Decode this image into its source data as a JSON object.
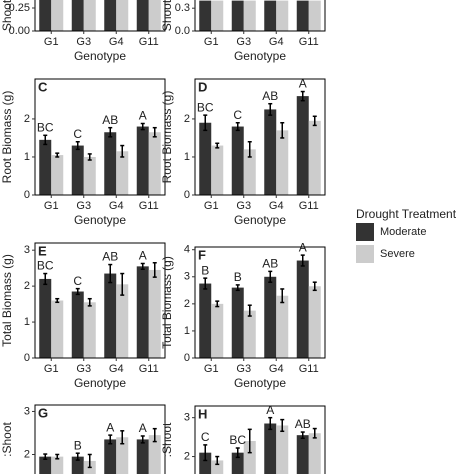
{
  "chart_data": [
    {
      "type": "bar",
      "ylabel": "Shoot",
      "xlabel": "Genotype",
      "categories": [
        "G1",
        "G3",
        "G4",
        "G11"
      ],
      "series": [
        {
          "name": "Moderate",
          "color": "#333333",
          "values": [
            0.4,
            0.4,
            0.4,
            0.4
          ]
        },
        {
          "name": "Severe",
          "color": "#cccccc",
          "values": [
            0.4,
            0.4,
            0.4,
            0.4
          ]
        }
      ],
      "ylim": [
        0,
        0.5
      ],
      "yticks": [
        {
          "value": 0,
          "label": "0.00"
        },
        0.25
      ],
      "legend_title": "Drought Treatment"
    },
    {
      "type": "bar",
      "ylabel": "Shoot",
      "xlabel": "Genotype",
      "categories": [
        "G1",
        "G3",
        "G4",
        "G11"
      ],
      "series": [
        {
          "name": "Moderate",
          "color": "#333333",
          "values": [
            0.4,
            0.4,
            0.4,
            0.4
          ]
        },
        {
          "name": "Severe",
          "color": "#cccccc",
          "values": [
            0.4,
            0.4,
            0.4,
            0.4
          ]
        }
      ],
      "ylim": [
        0,
        0.5
      ],
      "yticks": [
        {
          "value": 0,
          "label": "0.0"
        },
        0.3
      ]
    },
    {
      "type": "bar",
      "panel_label": "C",
      "ylabel": "Root Biomass (g)",
      "xlabel": "Genotype",
      "categories": [
        "G1",
        "G3",
        "G4",
        "G11"
      ],
      "series": [
        {
          "name": "Moderate",
          "color": "#333333",
          "values": [
            1.45,
            1.3,
            1.65,
            1.8
          ],
          "errors": [
            0.12,
            0.1,
            0.12,
            0.08
          ]
        },
        {
          "name": "Severe",
          "color": "#cccccc",
          "values": [
            1.05,
            1.0,
            1.15,
            1.65
          ],
          "errors": [
            0.05,
            0.08,
            0.15,
            0.12
          ]
        }
      ],
      "letters": [
        "BC",
        "C",
        "AB",
        "A"
      ],
      "ylim": [
        0,
        3.05
      ],
      "yticks": [
        0,
        1,
        2
      ]
    },
    {
      "type": "bar",
      "panel_label": "D",
      "ylabel": "Root Biomass (g)",
      "xlabel": "Genotype",
      "categories": [
        "G1",
        "G3",
        "G4",
        "G11"
      ],
      "series": [
        {
          "name": "Moderate",
          "color": "#333333",
          "values": [
            1.9,
            1.8,
            2.25,
            2.6
          ],
          "errors": [
            0.2,
            0.1,
            0.15,
            0.12
          ]
        },
        {
          "name": "Severe",
          "color": "#cccccc",
          "values": [
            1.3,
            1.2,
            1.7,
            1.95
          ],
          "errors": [
            0.06,
            0.2,
            0.2,
            0.12
          ]
        }
      ],
      "letters": [
        "BC",
        "C",
        "AB",
        "A"
      ],
      "ylim": [
        0,
        3.05
      ],
      "yticks": [
        0,
        1,
        2
      ]
    },
    {
      "type": "bar",
      "panel_label": "E",
      "ylabel": "Total Biomass (g)",
      "xlabel": "Genotype",
      "categories": [
        "G1",
        "G3",
        "G4",
        "G11"
      ],
      "series": [
        {
          "name": "Moderate",
          "color": "#333333",
          "values": [
            2.2,
            1.85,
            2.35,
            2.55
          ],
          "errors": [
            0.15,
            0.08,
            0.25,
            0.08
          ]
        },
        {
          "name": "Severe",
          "color": "#cccccc",
          "values": [
            1.6,
            1.55,
            2.05,
            2.45
          ],
          "errors": [
            0.05,
            0.1,
            0.3,
            0.2
          ]
        }
      ],
      "letters": [
        "BC",
        "C",
        "AB",
        "A"
      ],
      "ylim": [
        0,
        3.2
      ],
      "yticks": [
        0,
        1,
        2,
        3
      ]
    },
    {
      "type": "bar",
      "panel_label": "F",
      "ylabel": "Total Biomass (g)",
      "xlabel": "Genotype",
      "categories": [
        "G1",
        "G3",
        "G4",
        "G11"
      ],
      "series": [
        {
          "name": "Moderate",
          "color": "#333333",
          "values": [
            2.75,
            2.6,
            3.0,
            3.6
          ],
          "errors": [
            0.2,
            0.1,
            0.2,
            0.2
          ]
        },
        {
          "name": "Severe",
          "color": "#cccccc",
          "values": [
            2.0,
            1.75,
            2.3,
            2.65
          ],
          "errors": [
            0.1,
            0.2,
            0.25,
            0.15
          ]
        }
      ],
      "letters": [
        "B",
        "B",
        "AB",
        "A"
      ],
      "ylim": [
        0,
        4.1
      ],
      "yticks": [
        0,
        1,
        2,
        3,
        4
      ]
    },
    {
      "type": "bar",
      "panel_label": "G",
      "ylabel": ":Shoot",
      "series": [
        {
          "name": "Moderate",
          "color": "#333333",
          "values": [
            1.95,
            1.95,
            2.35,
            2.35
          ],
          "errors": [
            0.06,
            0.08,
            0.1,
            0.08
          ]
        },
        {
          "name": "Severe",
          "color": "#cccccc",
          "values": [
            1.95,
            1.85,
            2.4,
            2.45
          ],
          "errors": [
            0.05,
            0.15,
            0.15,
            0.15
          ]
        }
      ],
      "letters": [
        null,
        "B",
        "A",
        "A"
      ],
      "ylim": [
        1.5,
        3.15
      ],
      "yticks": [
        2,
        3
      ]
    },
    {
      "type": "bar",
      "panel_label": "H",
      "ylabel": ":Shoot",
      "series": [
        {
          "name": "Moderate",
          "color": "#333333",
          "values": [
            2.1,
            2.1,
            2.85,
            2.55
          ],
          "errors": [
            0.2,
            0.12,
            0.15,
            0.08
          ]
        },
        {
          "name": "Severe",
          "color": "#cccccc",
          "values": [
            1.9,
            2.4,
            2.8,
            2.6
          ],
          "errors": [
            0.1,
            0.3,
            0.15,
            0.12
          ]
        }
      ],
      "letters": [
        "C",
        "BC",
        "A",
        "AB"
      ],
      "ylim": [
        1.5,
        3.3
      ],
      "yticks": [
        2,
        3
      ]
    }
  ]
}
